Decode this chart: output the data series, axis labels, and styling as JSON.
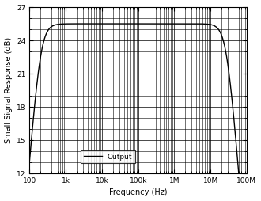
{
  "title": "",
  "xlabel": "Frequency (Hz)",
  "ylabel": "Small Signal Response (dB)",
  "xlim": [
    100,
    100000000.0
  ],
  "ylim": [
    12,
    27
  ],
  "yticks": [
    12,
    15,
    18,
    21,
    24,
    27
  ],
  "xtick_labels": [
    "100",
    "1k",
    "10k",
    "100k",
    "1M",
    "10M",
    "100M"
  ],
  "xtick_vals": [
    100,
    1000,
    10000,
    100000,
    1000000,
    10000000,
    100000000
  ],
  "legend_label": "Output",
  "line_color": "#000000",
  "background_color": "#ffffff",
  "grid_color": "#000000",
  "f_hp": 200,
  "f_lp": 28000000,
  "midband_dB": 25.5,
  "hp_order": 2,
  "lp_order": 2
}
